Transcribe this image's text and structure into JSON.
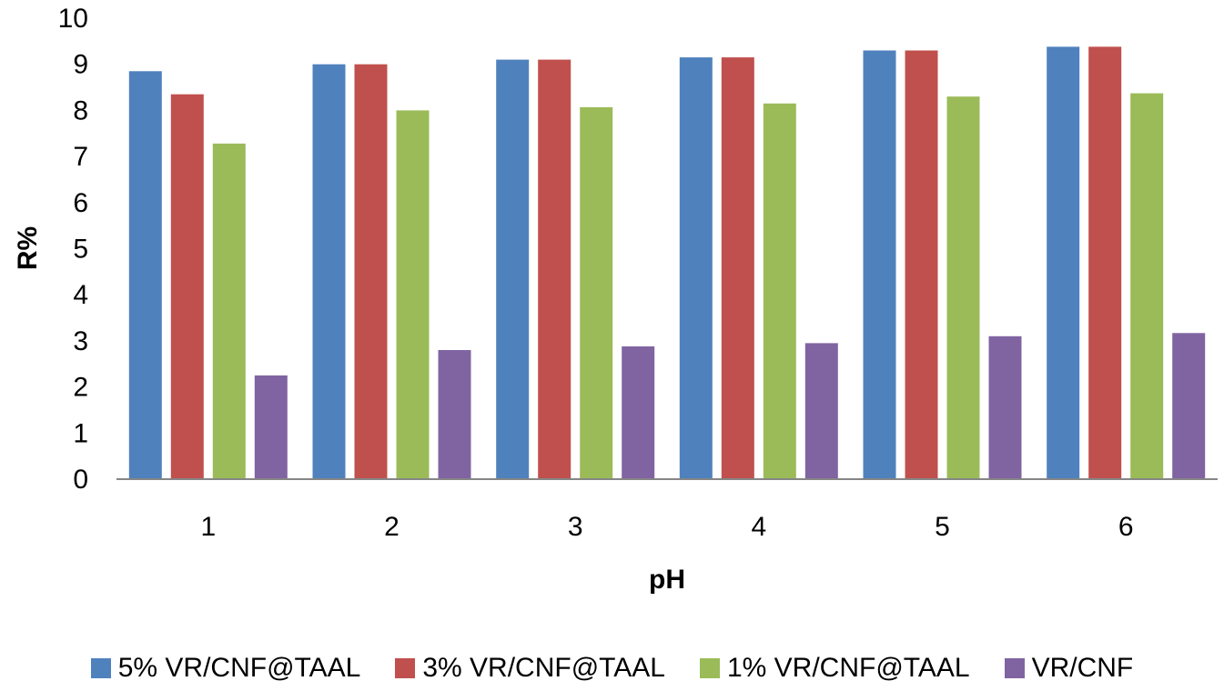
{
  "chart_data": {
    "type": "bar",
    "xlabel": "pH",
    "ylabel": "R%",
    "ylim": [
      0,
      10
    ],
    "yticks": [
      0,
      1,
      2,
      3,
      4,
      5,
      6,
      7,
      8,
      9,
      10
    ],
    "categories": [
      "1",
      "2",
      "3",
      "4",
      "5",
      "6"
    ],
    "grid": false,
    "legend_position": "bottom",
    "series": [
      {
        "name": "5% VR/CNF@TAAL",
        "color": "#4F81BD",
        "values": [
          8.85,
          9.0,
          9.1,
          9.15,
          9.3,
          9.38
        ]
      },
      {
        "name": "3% VR/CNF@TAAL",
        "color": "#C0504D",
        "values": [
          8.35,
          9.0,
          9.1,
          9.15,
          9.3,
          9.38
        ]
      },
      {
        "name": "1% VR/CNF@TAAL",
        "color": "#9BBB59",
        "values": [
          7.28,
          8.0,
          8.07,
          8.15,
          8.3,
          8.37
        ]
      },
      {
        "name": "VR/CNF",
        "color": "#8064A2",
        "values": [
          2.25,
          2.8,
          2.88,
          2.95,
          3.1,
          3.17
        ]
      }
    ]
  }
}
